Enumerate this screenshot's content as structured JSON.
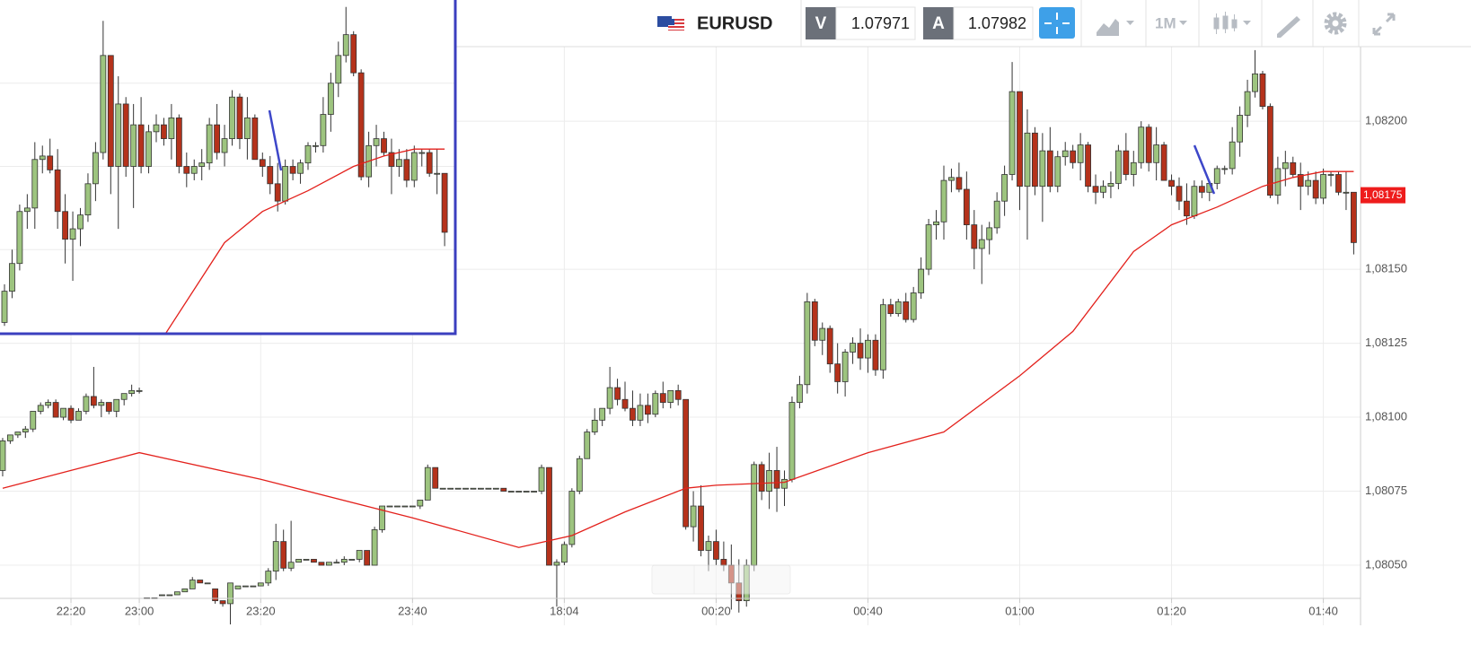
{
  "toolbar": {
    "symbol": "EURUSD",
    "bid_label": "V",
    "bid": 1.07971,
    "ask_label": "A",
    "ask": 1.07982,
    "timeframe": "1M"
  },
  "chart_data": {
    "type": "candlestick",
    "up_color": "#9dc47f",
    "down_color": "#b5321b",
    "grid": true,
    "xlim": [
      -0.35,
      178.9
    ],
    "ylim": [
      1.080297,
      1.082261
    ],
    "xticks": [
      {
        "value": 9,
        "label": "22:20"
      },
      {
        "value": 18,
        "label": "23:00"
      },
      {
        "value": 34,
        "label": "23:20"
      },
      {
        "value": 54,
        "label": "23:40"
      },
      {
        "value": 74,
        "label": "18:04"
      },
      {
        "value": 94,
        "label": "00:20"
      },
      {
        "value": 114,
        "label": "00:40"
      },
      {
        "value": 134,
        "label": "01:00"
      },
      {
        "value": 154,
        "label": "01:20"
      },
      {
        "value": 174,
        "label": "01:40"
      }
    ],
    "yticks": [
      {
        "value": 1.0805,
        "label": "1,08050"
      },
      {
        "value": 1.08075,
        "label": "1,08075"
      },
      {
        "value": 1.081,
        "label": "1,08100"
      },
      {
        "value": 1.08125,
        "label": "1,08125"
      },
      {
        "value": 1.0815,
        "label": "1,08150"
      },
      {
        "value": 1.082,
        "label": "1,08200"
      }
    ],
    "price_marker": {
      "value": 1.08175,
      "label": "1,08175",
      "color": "#ee1c1c"
    },
    "ma": {
      "color": "#e3211c",
      "x": [
        0,
        9,
        18,
        34,
        54,
        68,
        75,
        82,
        90,
        94,
        103,
        114,
        124,
        134,
        141,
        149,
        154,
        160,
        166,
        170,
        174,
        178
      ],
      "values": [
        1.08076,
        1.08082,
        1.08088,
        1.08079,
        1.08066,
        1.08056,
        1.0806,
        1.08068,
        1.08076,
        1.08077,
        1.08078,
        1.08088,
        1.08095,
        1.08114,
        1.08129,
        1.08156,
        1.08165,
        1.08171,
        1.08178,
        1.08181,
        1.08183,
        1.08183
      ]
    },
    "inset": {
      "start": 120,
      "ylim": [
        1.0813,
        1.08226
      ]
    },
    "candles": [
      [
        1.08082,
        1.08093,
        1.0808,
        1.08092
      ],
      [
        1.08092,
        1.08094,
        1.08091,
        1.08094
      ],
      [
        1.08094,
        1.08095,
        1.08093,
        1.08095
      ],
      [
        1.08095,
        1.08097,
        1.08093,
        1.08096
      ],
      [
        1.08096,
        1.08102,
        1.08095,
        1.08102
      ],
      [
        1.08102,
        1.08105,
        1.08101,
        1.08104
      ],
      [
        1.08104,
        1.08106,
        1.08103,
        1.08105
      ],
      [
        1.08105,
        1.08106,
        1.081,
        1.081
      ],
      [
        1.081,
        1.08103,
        1.08099,
        1.08103
      ],
      [
        1.08103,
        1.08104,
        1.08098,
        1.08099
      ],
      [
        1.08099,
        1.08103,
        1.08099,
        1.08102
      ],
      [
        1.08102,
        1.08108,
        1.08101,
        1.08107
      ],
      [
        1.08107,
        1.08117,
        1.08103,
        1.08104
      ],
      [
        1.08104,
        1.08106,
        1.081,
        1.08105
      ],
      [
        1.08105,
        1.08105,
        1.08101,
        1.08102
      ],
      [
        1.08102,
        1.08106,
        1.081,
        1.08106
      ],
      [
        1.08106,
        1.08108,
        1.08104,
        1.08108
      ],
      [
        1.08108,
        1.08111,
        1.08107,
        1.08109
      ],
      [
        1.08109,
        1.0811,
        1.08108,
        1.08109
      ],
      [
        1.08039,
        1.08039,
        1.08039,
        1.08039
      ],
      [
        1.08039,
        1.08039,
        1.08039,
        1.08039
      ],
      [
        1.0804,
        1.0804,
        1.0804,
        1.0804
      ],
      [
        1.0804,
        1.0804,
        1.0804,
        1.0804
      ],
      [
        1.0804,
        1.08041,
        1.0804,
        1.08041
      ],
      [
        1.08041,
        1.08042,
        1.08041,
        1.08042
      ],
      [
        1.08042,
        1.08046,
        1.08042,
        1.08045
      ],
      [
        1.08045,
        1.08045,
        1.08044,
        1.08044
      ],
      [
        1.08044,
        1.08044,
        1.08044,
        1.08044
      ],
      [
        1.08042,
        1.08042,
        1.08037,
        1.08038
      ],
      [
        1.08038,
        1.08038,
        1.08036,
        1.08037
      ],
      [
        1.08037,
        1.08044,
        1.0803,
        1.08044
      ],
      [
        1.08042,
        1.08043,
        1.08042,
        1.08043
      ],
      [
        1.08043,
        1.08043,
        1.08043,
        1.08043
      ],
      [
        1.08043,
        1.08043,
        1.08043,
        1.08043
      ],
      [
        1.08043,
        1.08044,
        1.08043,
        1.08044
      ],
      [
        1.08044,
        1.08049,
        1.08043,
        1.08048
      ],
      [
        1.08048,
        1.08064,
        1.08045,
        1.08058
      ],
      [
        1.08058,
        1.08062,
        1.08048,
        1.08049
      ],
      [
        1.08049,
        1.08065,
        1.08048,
        1.08051
      ],
      [
        1.08051,
        1.08052,
        1.08051,
        1.08052
      ],
      [
        1.08052,
        1.08052,
        1.08052,
        1.08052
      ],
      [
        1.08052,
        1.08052,
        1.08051,
        1.08051
      ],
      [
        1.08051,
        1.08051,
        1.0805,
        1.0805
      ],
      [
        1.0805,
        1.08051,
        1.0805,
        1.08051
      ],
      [
        1.08051,
        1.08052,
        1.08051,
        1.08051
      ],
      [
        1.08051,
        1.08053,
        1.0805,
        1.08052
      ],
      [
        1.08052,
        1.08052,
        1.08052,
        1.08052
      ],
      [
        1.08052,
        1.08055,
        1.08051,
        1.08055
      ],
      [
        1.08055,
        1.08055,
        1.0805,
        1.0805
      ],
      [
        1.0805,
        1.08063,
        1.0805,
        1.08062
      ],
      [
        1.08062,
        1.0807,
        1.08061,
        1.0807
      ],
      [
        1.0807,
        1.0807,
        1.0807,
        1.0807
      ],
      [
        1.0807,
        1.0807,
        1.0807,
        1.0807
      ],
      [
        1.0807,
        1.0807,
        1.0807,
        1.0807
      ],
      [
        1.0807,
        1.0807,
        1.0807,
        1.0807
      ],
      [
        1.0807,
        1.08072,
        1.08069,
        1.08072
      ],
      [
        1.08072,
        1.08084,
        1.08072,
        1.08083
      ],
      [
        1.08083,
        1.08083,
        1.08076,
        1.08076
      ],
      [
        1.08076,
        1.08076,
        1.08076,
        1.08076
      ],
      [
        1.08076,
        1.08076,
        1.08076,
        1.08076
      ],
      [
        1.08076,
        1.08076,
        1.08076,
        1.08076
      ],
      [
        1.08076,
        1.08076,
        1.08076,
        1.08076
      ],
      [
        1.08076,
        1.08076,
        1.08076,
        1.08076
      ],
      [
        1.08076,
        1.08076,
        1.08076,
        1.08076
      ],
      [
        1.08076,
        1.08076,
        1.08076,
        1.08076
      ],
      [
        1.08076,
        1.08076,
        1.08076,
        1.08076
      ],
      [
        1.08076,
        1.08076,
        1.08075,
        1.08075
      ],
      [
        1.08075,
        1.08075,
        1.08075,
        1.08075
      ],
      [
        1.08075,
        1.08075,
        1.08075,
        1.08075
      ],
      [
        1.08075,
        1.08075,
        1.08075,
        1.08075
      ],
      [
        1.08075,
        1.08075,
        1.08075,
        1.08075
      ],
      [
        1.08075,
        1.08084,
        1.08074,
        1.08083
      ],
      [
        1.08083,
        1.08083,
        1.0805,
        1.0805
      ],
      [
        1.0805,
        1.08052,
        1.08036,
        1.08051
      ],
      [
        1.08051,
        1.08058,
        1.0805,
        1.08057
      ],
      [
        1.08057,
        1.08076,
        1.08056,
        1.08075
      ],
      [
        1.08075,
        1.08087,
        1.08074,
        1.08086
      ],
      [
        1.08086,
        1.08096,
        1.08086,
        1.08095
      ],
      [
        1.08095,
        1.08103,
        1.08094,
        1.08099
      ],
      [
        1.08099,
        1.08103,
        1.08097,
        1.08103
      ],
      [
        1.08103,
        1.08117,
        1.08101,
        1.0811
      ],
      [
        1.0811,
        1.08113,
        1.08104,
        1.08106
      ],
      [
        1.08106,
        1.08112,
        1.08102,
        1.08103
      ],
      [
        1.08103,
        1.08109,
        1.08097,
        1.08099
      ],
      [
        1.08099,
        1.08108,
        1.08097,
        1.08104
      ],
      [
        1.08104,
        1.08108,
        1.08098,
        1.08101
      ],
      [
        1.08101,
        1.08109,
        1.081,
        1.08108
      ],
      [
        1.08108,
        1.08112,
        1.08103,
        1.08105
      ],
      [
        1.08105,
        1.08109,
        1.08103,
        1.08109
      ],
      [
        1.08109,
        1.08111,
        1.08104,
        1.08106
      ],
      [
        1.08106,
        1.08106,
        1.08062,
        1.08063
      ],
      [
        1.08063,
        1.08075,
        1.08058,
        1.0807
      ],
      [
        1.0807,
        1.08077,
        1.08053,
        1.08055
      ],
      [
        1.08055,
        1.0806,
        1.08048,
        1.08058
      ],
      [
        1.08058,
        1.08062,
        1.0805,
        1.08052
      ],
      [
        1.08052,
        1.08058,
        1.08048,
        1.0805
      ],
      [
        1.0805,
        1.08057,
        1.08035,
        1.08044
      ],
      [
        1.08044,
        1.08052,
        1.08034,
        1.08038
      ],
      [
        1.08038,
        1.08052,
        1.08036,
        1.0805
      ],
      [
        1.0805,
        1.08085,
        1.08048,
        1.08084
      ],
      [
        1.08084,
        1.08085,
        1.08072,
        1.08075
      ],
      [
        1.08075,
        1.08088,
        1.08069,
        1.08082
      ],
      [
        1.08082,
        1.0809,
        1.08068,
        1.08076
      ],
      [
        1.08076,
        1.08082,
        1.0807,
        1.08079
      ],
      [
        1.08079,
        1.08107,
        1.08078,
        1.08105
      ],
      [
        1.08105,
        1.08114,
        1.08103,
        1.08111
      ],
      [
        1.08111,
        1.08142,
        1.08108,
        1.08139
      ],
      [
        1.08139,
        1.0814,
        1.08124,
        1.08126
      ],
      [
        1.08126,
        1.08132,
        1.08121,
        1.0813
      ],
      [
        1.0813,
        1.08131,
        1.08115,
        1.08118
      ],
      [
        1.08118,
        1.08125,
        1.08108,
        1.08112
      ],
      [
        1.08112,
        1.08123,
        1.08107,
        1.08122
      ],
      [
        1.08122,
        1.08127,
        1.08118,
        1.08125
      ],
      [
        1.08125,
        1.0813,
        1.08116,
        1.0812
      ],
      [
        1.0812,
        1.08128,
        1.08115,
        1.08126
      ],
      [
        1.08126,
        1.08128,
        1.08114,
        1.08116
      ],
      [
        1.08116,
        1.0814,
        1.08113,
        1.08138
      ],
      [
        1.08138,
        1.0814,
        1.08134,
        1.08135
      ],
      [
        1.08135,
        1.0814,
        1.08134,
        1.08139
      ],
      [
        1.08139,
        1.08142,
        1.08132,
        1.08133
      ],
      [
        1.08133,
        1.08144,
        1.08132,
        1.08142
      ],
      [
        1.08142,
        1.08154,
        1.0814,
        1.0815
      ],
      [
        1.0815,
        1.08167,
        1.08148,
        1.08165
      ],
      [
        1.08165,
        1.0817,
        1.0816,
        1.08166
      ],
      [
        1.08166,
        1.08185,
        1.0816,
        1.0818
      ],
      [
        1.0818,
        1.08184,
        1.08176,
        1.08181
      ],
      [
        1.08181,
        1.08186,
        1.08176,
        1.08177
      ],
      [
        1.08177,
        1.08183,
        1.0816,
        1.08165
      ],
      [
        1.08165,
        1.0817,
        1.0815,
        1.08157
      ],
      [
        1.08157,
        1.08165,
        1.08145,
        1.0816
      ],
      [
        1.0816,
        1.08166,
        1.08155,
        1.08164
      ],
      [
        1.08164,
        1.08176,
        1.08162,
        1.08173
      ],
      [
        1.08173,
        1.08185,
        1.08168,
        1.08182
      ],
      [
        1.08182,
        1.0822,
        1.0818,
        1.0821
      ],
      [
        1.0821,
        1.0821,
        1.0817,
        1.08178
      ],
      [
        1.08178,
        1.08204,
        1.0816,
        1.08196
      ],
      [
        1.08196,
        1.08198,
        1.08175,
        1.08178
      ],
      [
        1.08178,
        1.08196,
        1.08166,
        1.0819
      ],
      [
        1.0819,
        1.08198,
        1.08176,
        1.08178
      ],
      [
        1.08178,
        1.0819,
        1.08176,
        1.08188
      ],
      [
        1.08188,
        1.08193,
        1.08185,
        1.0819
      ],
      [
        1.0819,
        1.08192,
        1.08184,
        1.08186
      ],
      [
        1.08186,
        1.08196,
        1.0818,
        1.08192
      ],
      [
        1.08192,
        1.08193,
        1.08176,
        1.08178
      ],
      [
        1.08178,
        1.08182,
        1.08172,
        1.08176
      ],
      [
        1.08176,
        1.0818,
        1.08174,
        1.08178
      ],
      [
        1.08178,
        1.08183,
        1.08174,
        1.08179
      ],
      [
        1.08179,
        1.08192,
        1.08177,
        1.0819
      ],
      [
        1.0819,
        1.08196,
        1.0818,
        1.08182
      ],
      [
        1.08182,
        1.0819,
        1.08178,
        1.08186
      ],
      [
        1.08186,
        1.082,
        1.08184,
        1.08198
      ],
      [
        1.08198,
        1.08199,
        1.08183,
        1.08186
      ],
      [
        1.08186,
        1.08198,
        1.0818,
        1.08192
      ],
      [
        1.08192,
        1.08193,
        1.0818,
        1.0818
      ],
      [
        1.0818,
        1.08182,
        1.08175,
        1.08178
      ],
      [
        1.08178,
        1.08181,
        1.0817,
        1.08173
      ],
      [
        1.08173,
        1.08179,
        1.08165,
        1.08168
      ],
      [
        1.08168,
        1.0818,
        1.08167,
        1.08178
      ],
      [
        1.08178,
        1.0818,
        1.08174,
        1.08176
      ],
      [
        1.08176,
        1.0818,
        1.08173,
        1.08179
      ],
      [
        1.08179,
        1.08185,
        1.08177,
        1.08184
      ],
      [
        1.08184,
        1.08185,
        1.08182,
        1.08184
      ],
      [
        1.08184,
        1.08198,
        1.08182,
        1.08193
      ],
      [
        1.08193,
        1.08205,
        1.08188,
        1.08202
      ],
      [
        1.08202,
        1.08214,
        1.08198,
        1.0821
      ],
      [
        1.0821,
        1.08224,
        1.08208,
        1.08216
      ],
      [
        1.08216,
        1.08217,
        1.08204,
        1.08205
      ],
      [
        1.08205,
        1.08206,
        1.08174,
        1.08175
      ],
      [
        1.08175,
        1.08188,
        1.08172,
        1.08184
      ],
      [
        1.08184,
        1.0819,
        1.08178,
        1.08186
      ],
      [
        1.08186,
        1.08188,
        1.08181,
        1.08182
      ],
      [
        1.08182,
        1.08186,
        1.0817,
        1.08178
      ],
      [
        1.08178,
        1.08183,
        1.08175,
        1.0818
      ],
      [
        1.0818,
        1.08183,
        1.08172,
        1.08174
      ],
      [
        1.08174,
        1.08184,
        1.08172,
        1.08182
      ],
      [
        1.08182,
        1.08183,
        1.08178,
        1.08182
      ],
      [
        1.08182,
        1.08183,
        1.08175,
        1.08176
      ],
      [
        1.08176,
        1.08183,
        1.0817,
        1.08176
      ],
      [
        1.08176,
        1.08176,
        1.08155,
        1.08159
      ]
    ]
  }
}
